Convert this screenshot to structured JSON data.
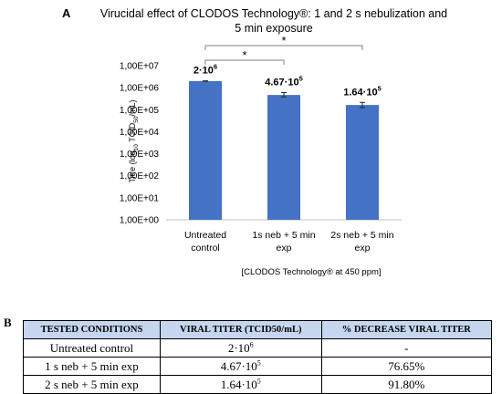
{
  "chart_data": {
    "type": "bar",
    "panel_label": "A",
    "title_line1": "Virucidal effect of CLODOS Technology®: 1 and 2 s nebulization and",
    "title_line2": "5 min exposure",
    "ylabel_pre": "Titre (log",
    "ylabel_sub": "10",
    "ylabel_mid": " TCID",
    "ylabel_sub2": "50",
    "ylabel_post": "/mL)",
    "y_scale": "log",
    "ylim": [
      1,
      10000000
    ],
    "ytick_values": [
      1,
      10,
      100,
      1000,
      10000,
      100000,
      1000000,
      10000000
    ],
    "yticks": [
      "1,00E+00",
      "1,00E+01",
      "1,00E+02",
      "1,00E+03",
      "1,00E+04",
      "1,00E+05",
      "1,00E+06",
      "1,00E+07"
    ],
    "categories": [
      [
        "Untreated",
        "control"
      ],
      [
        "1s neb + 5 min",
        "exp"
      ],
      [
        "2s neb + 5 min",
        "exp"
      ]
    ],
    "values": [
      2000000,
      467000,
      164000
    ],
    "error_high": [
      2050000,
      600000,
      215000
    ],
    "error_low": [
      1950000,
      380000,
      125000
    ],
    "data_labels": [
      {
        "mantissa": "2·10",
        "exp": "6"
      },
      {
        "mantissa": "4.67·10",
        "exp": "5"
      },
      {
        "mantissa": "1.64·10",
        "exp": "5"
      }
    ],
    "bar_color": "#4472c4",
    "grid": false,
    "significance": [
      {
        "from": 0,
        "to": 1,
        "label": "*"
      },
      {
        "from": 0,
        "to": 2,
        "label": "*"
      }
    ],
    "footnote": "[CLODOS Technology® at 450 ppm]"
  },
  "table": {
    "panel_label": "B",
    "header_color": "#c5d6ee",
    "headers": [
      "TESTED CONDITIONS",
      "VIRAL TITER (TCID50/mL)",
      "% DECREASE VIRAL TITER"
    ],
    "rows": [
      {
        "condition": "Untreated control",
        "titer": "2·10",
        "titer_exp": "6",
        "decrease": "-"
      },
      {
        "condition": "1 s neb + 5 min exp",
        "titer": "4.67·10",
        "titer_exp": "5",
        "decrease": "76.65%"
      },
      {
        "condition": "2 s neb + 5 min exp",
        "titer": "1.64·10",
        "titer_exp": "5",
        "decrease": "91.80%"
      }
    ]
  }
}
